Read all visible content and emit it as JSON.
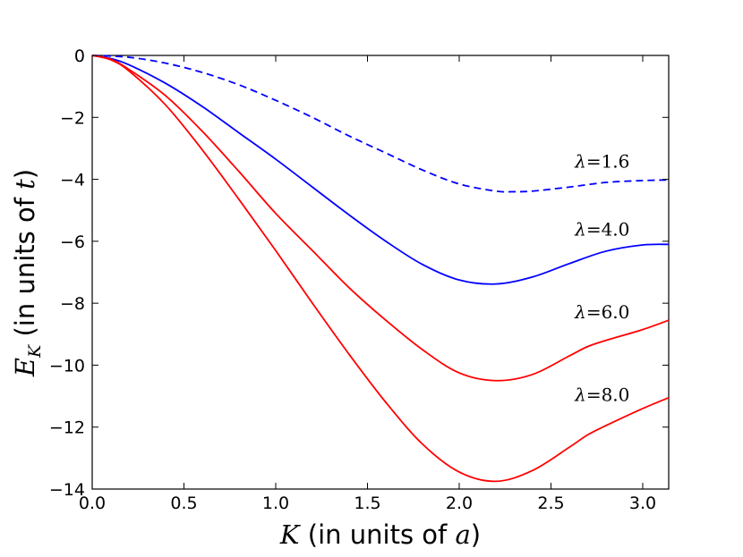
{
  "chart_data": {
    "type": "line",
    "title": "",
    "xlabel": {
      "symbol": "K",
      "text": " (in units of ",
      "unit_symbol": "a",
      "close": ")"
    },
    "ylabel": {
      "symbol": "E",
      "subscript": "K",
      "text": "  (in units of ",
      "unit_symbol": "t",
      "close": ")"
    },
    "xlim": [
      0.0,
      3.14159
    ],
    "ylim": [
      -14,
      0
    ],
    "xticks": [
      0.0,
      0.5,
      1.0,
      1.5,
      2.0,
      2.5,
      3.0
    ],
    "xtick_labels": [
      "0.0",
      "0.5",
      "1.0",
      "1.5",
      "2.0",
      "2.5",
      "3.0"
    ],
    "yticks": [
      0,
      -2,
      -4,
      -6,
      -8,
      -10,
      -12,
      -14
    ],
    "ytick_labels": [
      "0",
      "−2",
      "−4",
      "−6",
      "−8",
      "−10",
      "−12",
      "−14"
    ],
    "grid": false,
    "series": [
      {
        "name": "lambda=1.6",
        "label_symbol": "λ",
        "label_value": "=1.6",
        "label_anchor": {
          "x": 2.63,
          "y": -3.62
        },
        "color": "#0000ff",
        "dash": "dashed",
        "x": [
          0.0,
          0.2,
          0.4,
          0.6,
          0.8,
          1.0,
          1.2,
          1.4,
          1.6,
          1.8,
          2.0,
          2.2,
          2.3,
          2.4,
          2.6,
          2.8,
          3.0,
          3.14159
        ],
        "y": [
          0.0,
          -0.06,
          -0.25,
          -0.55,
          -0.95,
          -1.45,
          -2.0,
          -2.6,
          -3.15,
          -3.7,
          -4.15,
          -4.38,
          -4.4,
          -4.38,
          -4.25,
          -4.1,
          -4.04,
          -4.02
        ]
      },
      {
        "name": "lambda=4.0",
        "label_symbol": "λ",
        "label_value": "=4.0",
        "label_anchor": {
          "x": 2.63,
          "y": -5.82
        },
        "color": "#0000ff",
        "dash": "solid",
        "x": [
          0.0,
          0.1,
          0.2,
          0.4,
          0.6,
          0.8,
          1.0,
          1.2,
          1.4,
          1.6,
          1.8,
          2.0,
          2.2,
          2.4,
          2.6,
          2.8,
          3.0,
          3.14159
        ],
        "y": [
          0.0,
          -0.1,
          -0.3,
          -0.9,
          -1.65,
          -2.5,
          -3.35,
          -4.25,
          -5.15,
          -6.0,
          -6.75,
          -7.25,
          -7.38,
          -7.15,
          -6.72,
          -6.32,
          -6.12,
          -6.1
        ]
      },
      {
        "name": "lambda=6.0",
        "label_symbol": "λ",
        "label_value": "=6.0",
        "label_anchor": {
          "x": 2.63,
          "y": -8.48
        },
        "color": "#ff0000",
        "dash": "solid",
        "x": [
          0.0,
          0.1,
          0.2,
          0.4,
          0.6,
          0.8,
          1.0,
          1.2,
          1.4,
          1.6,
          1.8,
          2.0,
          2.2,
          2.4,
          2.6,
          2.7,
          2.8,
          3.0,
          3.14159
        ],
        "y": [
          0.0,
          -0.12,
          -0.45,
          -1.3,
          -2.45,
          -3.75,
          -5.1,
          -6.3,
          -7.5,
          -8.55,
          -9.5,
          -10.25,
          -10.5,
          -10.3,
          -9.7,
          -9.4,
          -9.2,
          -8.85,
          -8.55
        ]
      },
      {
        "name": "lambda=8.0",
        "label_symbol": "λ",
        "label_value": "=8.0",
        "label_anchor": {
          "x": 2.63,
          "y": -11.15
        },
        "color": "#ff0000",
        "dash": "solid",
        "x": [
          0.0,
          0.1,
          0.2,
          0.4,
          0.6,
          0.8,
          1.0,
          1.2,
          1.4,
          1.6,
          1.8,
          2.0,
          2.2,
          2.4,
          2.6,
          2.7,
          2.8,
          3.0,
          3.14159
        ],
        "y": [
          0.0,
          -0.14,
          -0.5,
          -1.6,
          -3.05,
          -4.65,
          -6.3,
          -8.0,
          -9.65,
          -11.2,
          -12.55,
          -13.45,
          -13.75,
          -13.4,
          -12.65,
          -12.25,
          -11.95,
          -11.4,
          -11.05
        ]
      }
    ]
  }
}
